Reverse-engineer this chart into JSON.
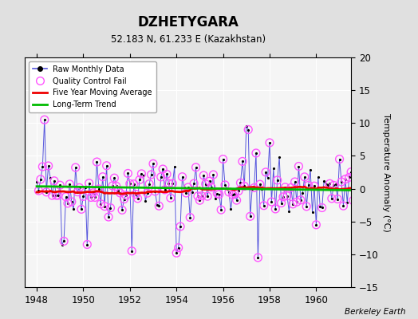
{
  "title": "DZHETYGARA",
  "subtitle": "52.183 N, 61.233 E (Kazakhstan)",
  "ylabel": "Temperature Anomaly (°C)",
  "credit": "Berkeley Earth",
  "xlim": [
    1947.5,
    1961.5
  ],
  "ylim": [
    -15,
    20
  ],
  "yticks": [
    -15,
    -10,
    -5,
    0,
    5,
    10,
    15,
    20
  ],
  "xticks": [
    1948,
    1950,
    1952,
    1954,
    1956,
    1958,
    1960
  ],
  "bg_color": "#e0e0e0",
  "plot_bg_color": "#f5f5f5",
  "raw_line_color": "#5555dd",
  "qc_color": "#ff55ff",
  "moving_avg_color": "#ee0000",
  "trend_color": "#00bb00",
  "seed": 42,
  "n_points": 168,
  "start_year": 1948.0,
  "end_year": 1961.917
}
